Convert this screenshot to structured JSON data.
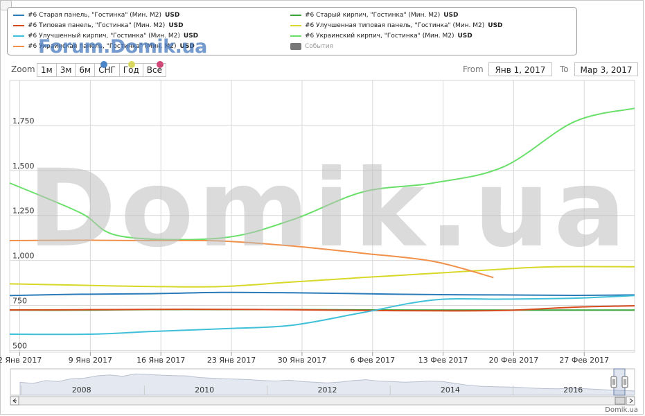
{
  "watermarks": {
    "forum": "Forum.Domik.ua",
    "main": "Domik.ua"
  },
  "legend": {
    "unit": "USD",
    "events_label": "События",
    "events_color": "#777777"
  },
  "zoom": {
    "label": "Zoom",
    "buttons": [
      "1м",
      "3м",
      "6м",
      "СНГ",
      "Год",
      "Все"
    ],
    "dots": [
      "#4a86c8",
      "#d8d860",
      "#d04878"
    ]
  },
  "range": {
    "from_label": "From",
    "from_value": "Янв 1, 2017",
    "to_label": "To",
    "to_value": "Мар 3, 2017"
  },
  "footer_credit": "Domik.ua",
  "chart_data": {
    "type": "line",
    "x_ticks": [
      "2 Янв 2017",
      "9 Янв 2017",
      "16 Янв 2017",
      "23 Янв 2017",
      "30 Янв 2017",
      "6 Фев 2017",
      "13 Фев 2017",
      "20 Фев 2017",
      "27 Фев 2017"
    ],
    "x_tick_days": [
      1,
      8,
      15,
      22,
      29,
      36,
      43,
      50,
      57
    ],
    "x_range_days": [
      0,
      62
    ],
    "y_ticks": [
      500,
      750,
      1000,
      1250,
      1500,
      1750
    ],
    "y_tick_labels": [
      "500",
      "750",
      "1,000",
      "1,250",
      "1,500",
      "1,750"
    ],
    "ylim": [
      490,
      2000
    ],
    "series": [
      {
        "name": "#6 Старая панель, \"Гостинка\" (Мин. М2)",
        "color": "#2a7bb8",
        "points": [
          [
            0,
            805
          ],
          [
            7,
            812
          ],
          [
            14,
            815
          ],
          [
            21,
            822
          ],
          [
            28,
            820
          ],
          [
            35,
            815
          ],
          [
            42,
            810
          ],
          [
            49,
            808
          ],
          [
            56,
            806
          ],
          [
            62,
            808
          ]
        ]
      },
      {
        "name": "#6 Старый кирпич, \"Гостинка\" (Мин. М2)",
        "color": "#3aa23a",
        "points": [
          [
            0,
            724
          ],
          [
            7,
            724
          ],
          [
            14,
            727
          ],
          [
            21,
            727
          ],
          [
            28,
            727
          ],
          [
            35,
            725
          ],
          [
            42,
            724
          ],
          [
            49,
            724
          ],
          [
            56,
            724
          ],
          [
            62,
            724
          ]
        ]
      },
      {
        "name": "#6 Типовая панель, \"Гостинка\" (Мин. М2)",
        "color": "#d64b1e",
        "points": [
          [
            0,
            725
          ],
          [
            7,
            726
          ],
          [
            14,
            728
          ],
          [
            21,
            728
          ],
          [
            28,
            726
          ],
          [
            35,
            722
          ],
          [
            42,
            720
          ],
          [
            49,
            722
          ],
          [
            56,
            740
          ],
          [
            62,
            748
          ]
        ]
      },
      {
        "name": "#6 Улучшенная типовая панель, \"Гостинка\" (Мин. М2)",
        "color": "#d8d82a",
        "points": [
          [
            0,
            870
          ],
          [
            7,
            862
          ],
          [
            14,
            855
          ],
          [
            21,
            855
          ],
          [
            28,
            880
          ],
          [
            35,
            905
          ],
          [
            42,
            928
          ],
          [
            49,
            952
          ],
          [
            54,
            965
          ],
          [
            62,
            965
          ]
        ]
      },
      {
        "name": "#6 Улучшенный кирпич, \"Гостинка\" (Мин. М2)",
        "color": "#40c0d8",
        "points": [
          [
            0,
            590
          ],
          [
            8,
            590
          ],
          [
            14,
            605
          ],
          [
            21,
            620
          ],
          [
            28,
            640
          ],
          [
            35,
            710
          ],
          [
            42,
            780
          ],
          [
            49,
            785
          ],
          [
            56,
            790
          ],
          [
            62,
            805
          ]
        ]
      },
      {
        "name": "#6 Украинский кирпич, \"Гостинка\" (Мин. М2)",
        "color": "#6ae06a",
        "points": [
          [
            0,
            1430
          ],
          [
            7,
            1265
          ],
          [
            11,
            1135
          ],
          [
            21,
            1125
          ],
          [
            28,
            1225
          ],
          [
            35,
            1380
          ],
          [
            42,
            1430
          ],
          [
            49,
            1520
          ],
          [
            56,
            1770
          ],
          [
            62,
            1845
          ]
        ]
      },
      {
        "name": "#6 Украинская панель, \"Гостинка\" (Мин. М2)",
        "color": "#f0904a",
        "points": [
          [
            0,
            1110
          ],
          [
            7,
            1112
          ],
          [
            14,
            1110
          ],
          [
            21,
            1108
          ],
          [
            28,
            1080
          ],
          [
            35,
            1040
          ],
          [
            42,
            995
          ],
          [
            48,
            905
          ]
        ]
      }
    ],
    "navigator": {
      "years": [
        "2008",
        "2010",
        "2012",
        "2014",
        "2016"
      ],
      "values": [
        0.55,
        0.5,
        0.62,
        0.58,
        0.7,
        0.72,
        0.82,
        0.86,
        0.8,
        0.9,
        0.88,
        0.85,
        0.83,
        0.82,
        0.75,
        0.72,
        0.7,
        0.68,
        0.66,
        0.62,
        0.6,
        0.64,
        0.58,
        0.55,
        0.52,
        0.56,
        0.62,
        0.66,
        0.6,
        0.58,
        0.55,
        0.57,
        0.6,
        0.58,
        0.5,
        0.42,
        0.38,
        0.36,
        0.35,
        0.33,
        0.3,
        0.28,
        0.27,
        0.3,
        0.28,
        0.25,
        0.22,
        0.2,
        0.18
      ]
    }
  }
}
